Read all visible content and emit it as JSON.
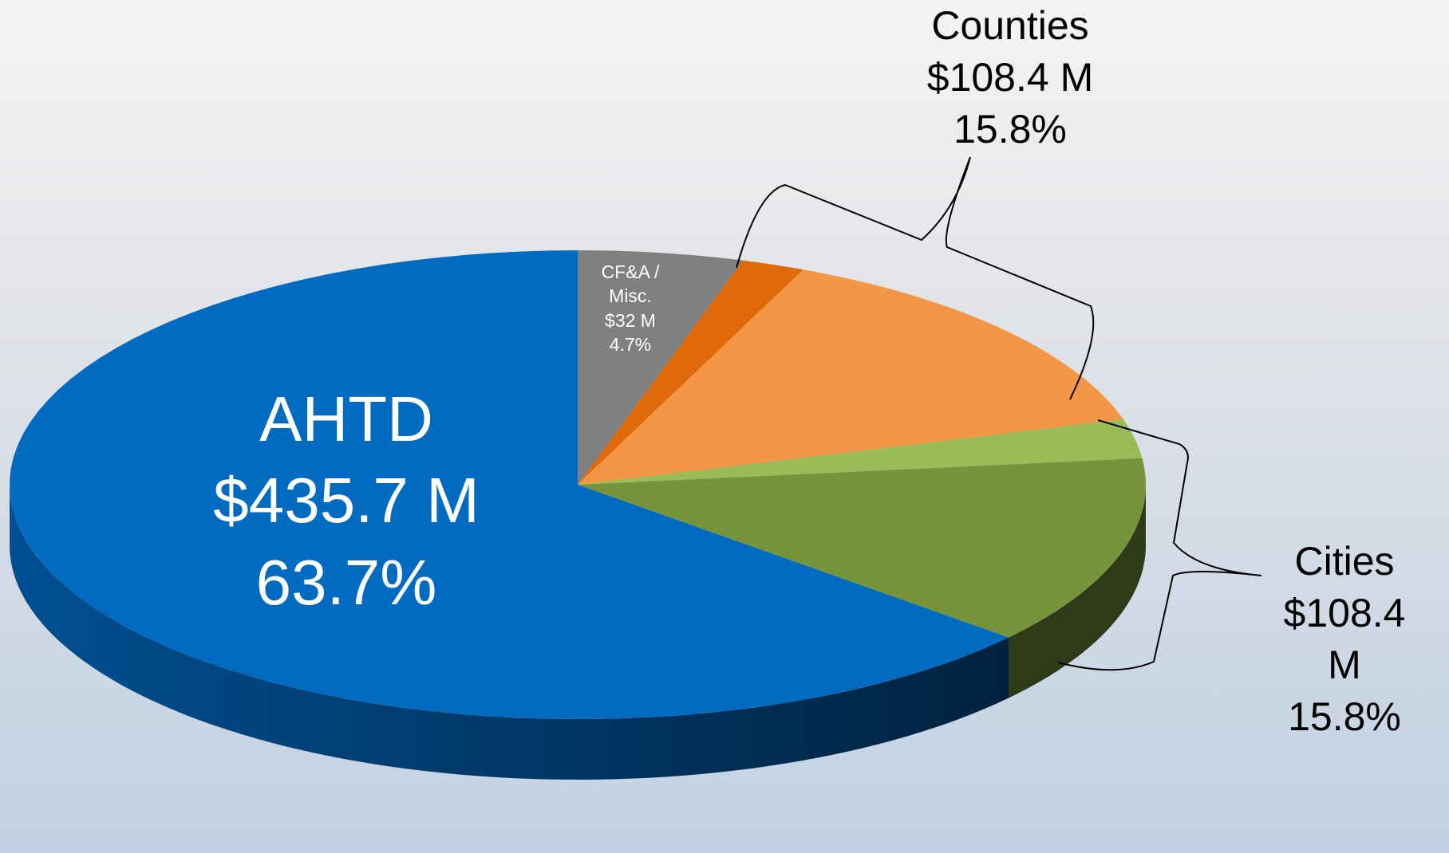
{
  "chart_data": {
    "type": "pie3d",
    "slices": [
      {
        "name": "CF&A / Misc.",
        "value": 4.7,
        "value_label": "4.7%",
        "amount": 32,
        "amount_label": "$32 M",
        "parts": [
          4.7
        ],
        "colors": [
          "#808080"
        ],
        "side_colors": [
          "#5e5e5e"
        ]
      },
      {
        "name": "Counties",
        "value": 15.8,
        "value_label": "15.8%",
        "amount": 108.4,
        "amount_label": "$108.4 M",
        "parts": [
          1.8,
          14.0
        ],
        "colors": [
          "#e0690a",
          "#f39646"
        ],
        "side_colors": [
          "#a14b06",
          "#b56d30"
        ]
      },
      {
        "name": "Cities",
        "value": 15.8,
        "value_label": "15.8%",
        "amount": 108.4,
        "amount_label": "$108.4 M",
        "parts": [
          2.7,
          13.1
        ],
        "colors": [
          "#9bbb59",
          "#77933c"
        ],
        "side_colors": [
          "#4e5f2b",
          "#2f3b18"
        ]
      },
      {
        "name": "AHTD",
        "value": 63.7,
        "value_label": "63.7%",
        "amount": 435.7,
        "amount_label": "$435.7 M",
        "parts": [
          63.7
        ],
        "colors": [
          "#006bc0"
        ],
        "side_colors": [
          "#004a88"
        ]
      }
    ]
  }
}
